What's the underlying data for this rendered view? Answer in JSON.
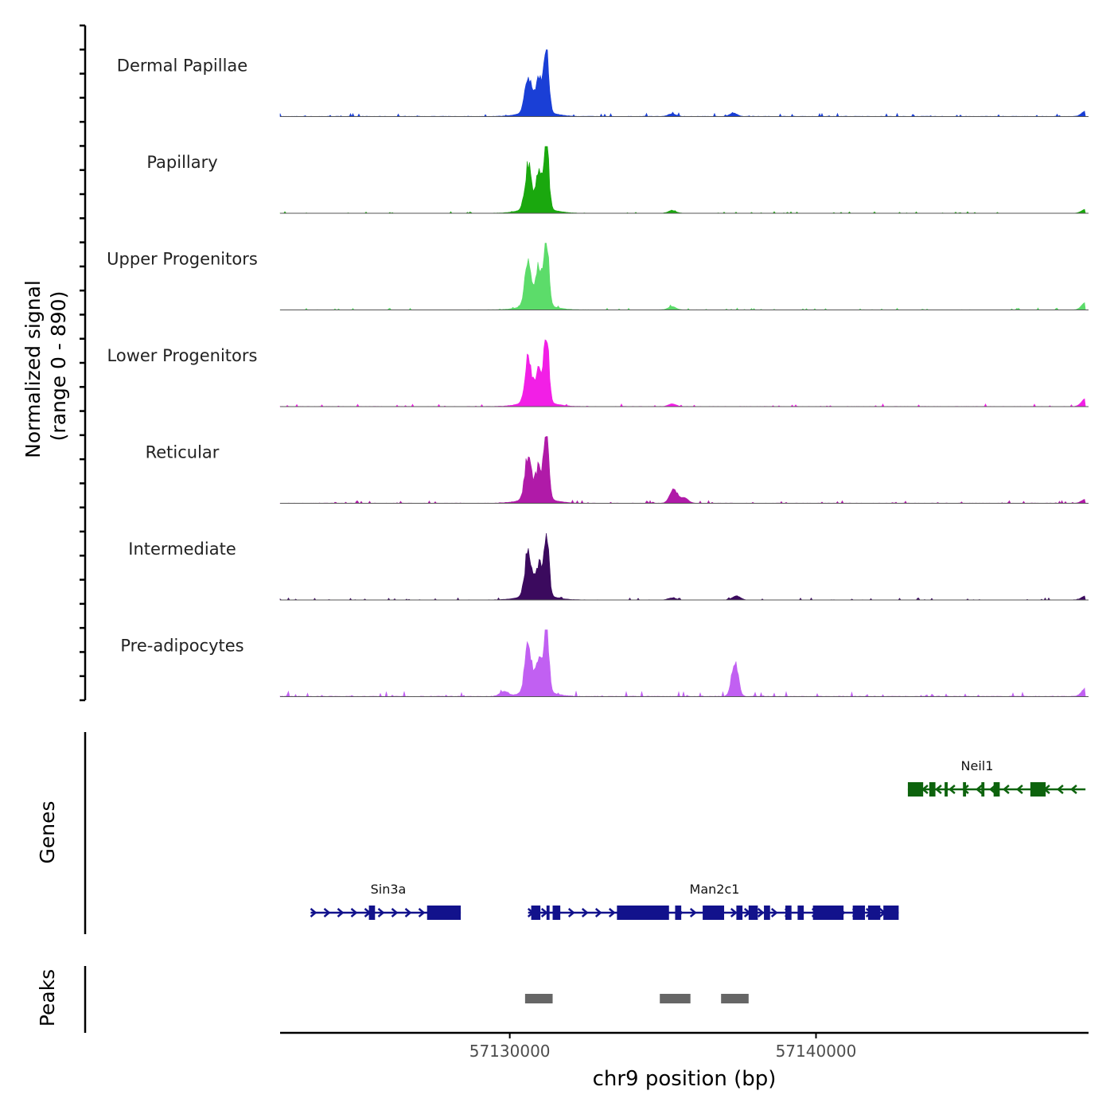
{
  "chart_data": {
    "type": "area",
    "title": "",
    "xlabel": "chr9 position (bp)",
    "ylabel_line1": "Normalized signal",
    "ylabel_line2": "(range 0 - 890)",
    "y_range": [
      0,
      890
    ],
    "xlim": [
      57122500,
      57148900
    ],
    "x_ticks": [
      57130000,
      57140000
    ],
    "x_tick_labels": [
      "57130000",
      "57140000"
    ],
    "tracks": [
      {
        "name": "Dermal Papillae",
        "color": "#1a3fd6",
        "bg_level": 0.025,
        "peaks": [
          [
            57130600,
            0.55
          ],
          [
            57130950,
            0.48
          ],
          [
            57131200,
            1.0
          ]
        ],
        "minor": [
          [
            57135300,
            0.04
          ],
          [
            57137300,
            0.05
          ],
          [
            57148800,
            0.08
          ]
        ]
      },
      {
        "name": "Papillary",
        "color": "#1aa80e",
        "bg_level": 0.012,
        "peaks": [
          [
            57130600,
            0.65
          ],
          [
            57130950,
            0.52
          ],
          [
            57131200,
            1.0
          ]
        ],
        "minor": [
          [
            57135300,
            0.04
          ],
          [
            57148800,
            0.06
          ]
        ]
      },
      {
        "name": "Upper Progenitors",
        "color": "#5cdc6a",
        "bg_level": 0.015,
        "peaks": [
          [
            57130600,
            0.66
          ],
          [
            57130950,
            0.58
          ],
          [
            57131200,
            1.0
          ]
        ],
        "minor": [
          [
            57135300,
            0.05
          ],
          [
            57148800,
            0.11
          ]
        ]
      },
      {
        "name": "Lower Progenitors",
        "color": "#f21fe6",
        "bg_level": 0.02,
        "peaks": [
          [
            57130600,
            0.66
          ],
          [
            57130950,
            0.52
          ],
          [
            57131200,
            1.0
          ]
        ],
        "minor": [
          [
            57135300,
            0.04
          ],
          [
            57148800,
            0.12
          ]
        ]
      },
      {
        "name": "Reticular",
        "color": "#b01aa8",
        "bg_level": 0.02,
        "peaks": [
          [
            57130600,
            0.66
          ],
          [
            57130950,
            0.48
          ],
          [
            57131200,
            1.0
          ]
        ],
        "minor": [
          [
            57135350,
            0.2
          ],
          [
            57135700,
            0.08
          ],
          [
            57148800,
            0.06
          ]
        ]
      },
      {
        "name": "Intermediate",
        "color": "#3b0a5e",
        "bg_level": 0.015,
        "peaks": [
          [
            57130600,
            0.66
          ],
          [
            57130950,
            0.47
          ],
          [
            57131200,
            1.0
          ]
        ],
        "minor": [
          [
            57135300,
            0.03
          ],
          [
            57137400,
            0.06
          ],
          [
            57148800,
            0.06
          ]
        ]
      },
      {
        "name": "Pre-adipocytes",
        "color": "#c160f2",
        "bg_level": 0.04,
        "peaks": [
          [
            57130600,
            0.69
          ],
          [
            57130950,
            0.5
          ],
          [
            57131200,
            1.0
          ],
          [
            57137350,
            0.53
          ]
        ],
        "minor": [
          [
            57129800,
            0.07
          ],
          [
            57148800,
            0.12
          ]
        ]
      }
    ],
    "genes_title": "Genes",
    "genes": [
      {
        "name": "Sin3a",
        "color": "#12128c",
        "strand": "+",
        "start": 57123500,
        "end": 57128400,
        "exons": [
          [
            57125400,
            57125600
          ],
          [
            57127300,
            57128400
          ]
        ]
      },
      {
        "name": "Man2c1",
        "color": "#12128c",
        "strand": "+",
        "start": 57130600,
        "end": 57142700,
        "exons": [
          [
            57130700,
            57131000
          ],
          [
            57131200,
            57131300
          ],
          [
            57131400,
            57131650
          ],
          [
            57133500,
            57135200
          ],
          [
            57135400,
            57135600
          ],
          [
            57136300,
            57137000
          ],
          [
            57137400,
            57137600
          ],
          [
            57137800,
            57138100
          ],
          [
            57138300,
            57138500
          ],
          [
            57139000,
            57139200
          ],
          [
            57139400,
            57139600
          ],
          [
            57139900,
            57140900
          ],
          [
            57141200,
            57141600
          ],
          [
            57141700,
            57142100
          ],
          [
            57142200,
            57142700
          ]
        ]
      },
      {
        "name": "Neil1",
        "color": "#0d630d",
        "strand": "-",
        "start": 57143000,
        "end": 57148800,
        "exons": [
          [
            57143000,
            57143500
          ],
          [
            57143700,
            57143900
          ],
          [
            57144200,
            57144300
          ],
          [
            57144800,
            57144900
          ],
          [
            57145400,
            57145500
          ],
          [
            57145800,
            57146000
          ],
          [
            57147000,
            57147500
          ]
        ]
      }
    ],
    "peaks_title": "Peaks",
    "peaks_color": "#666666",
    "peak_regions": [
      [
        57130500,
        57131400
      ],
      [
        57134900,
        57135900
      ],
      [
        57136900,
        57137800
      ]
    ]
  }
}
